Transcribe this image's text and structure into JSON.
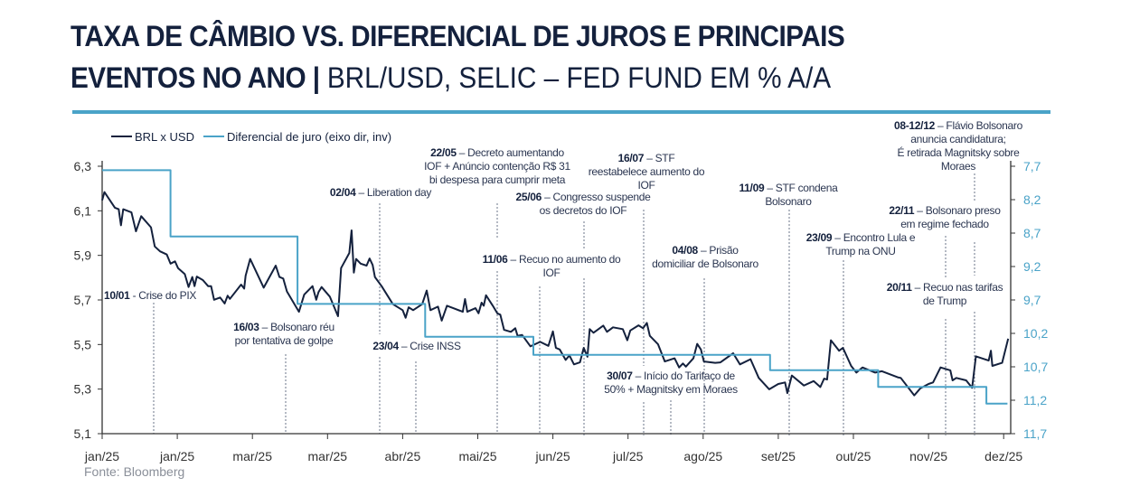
{
  "title": {
    "line1": "TAXA DE CÂMBIO VS. DIFERENCIAL DE JUROS E PRINCIPAIS",
    "line2_bold": "EVENTOS NO ANO |",
    "line2_regular": " BRL/USD, SELIC – FED FUND EM % A/A"
  },
  "source": "Fonte: Bloomberg",
  "colors": {
    "brl": "#14213d",
    "diff": "#4aa3c8",
    "axis": "#333333",
    "accent": "#4aa3c8"
  },
  "annotations": [
    {
      "date": "10/01",
      "lines": [
        " - Crise do PIX"
      ]
    },
    {
      "date": "16/03",
      "lines": [
        " – Bolsonaro réu",
        "por tentativa de golpe"
      ]
    },
    {
      "date": "02/04",
      "lines": [
        " – Liberation day"
      ]
    },
    {
      "date": "23/04",
      "lines": [
        " – Crise INSS"
      ]
    },
    {
      "date": "22/05",
      "lines": [
        " – Decreto aumentando",
        "IOF + Anúncio contenção R$ 31",
        "bi despesa para cumprir meta"
      ]
    },
    {
      "date": "25/06",
      "lines": [
        " – Congresso suspende",
        "os decretos do IOF"
      ]
    },
    {
      "date": "11/06",
      "lines": [
        " – Recuo no aumento do",
        "IOF"
      ]
    },
    {
      "date": "16/07",
      "lines": [
        " – STF",
        "reestabelece aumento do",
        "IOF"
      ]
    },
    {
      "date": "30/07",
      "lines": [
        " – Início do Tarifaço de",
        "50% + Magnitsky em Moraes"
      ]
    },
    {
      "date": "04/08",
      "lines": [
        " – Prisão",
        "domiciliar de Bolsonaro"
      ]
    },
    {
      "date": "11/09",
      "lines": [
        " – STF condena",
        "Bolsonaro"
      ]
    },
    {
      "date": "23/09",
      "lines": [
        " – Encontro Lula e",
        "Trump na ONU"
      ]
    },
    {
      "date": "22/11",
      "lines": [
        " – Bolsonaro preso",
        "em regime fechado"
      ]
    },
    {
      "date": "20/11",
      "lines": [
        " – Recuo nas tarifas",
        "de Trump"
      ]
    },
    {
      "date": "08-12/12",
      "lines": [
        " – Flávio Bolsonaro",
        "anuncia candidatura;",
        "É retirada Magnitsky sobre",
        "Moraes"
      ]
    }
  ],
  "chart_data": {
    "type": "line",
    "title": "TAXA DE CÂMBIO VS. DIFERENCIAL DE JUROS E PRINCIPAIS EVENTOS NO ANO | BRL/USD, SELIC – FED FUND EM % A/A",
    "x_unit": "months since start of January 2025",
    "x_ticks": [
      "jan/25",
      "jan/25",
      "mar/25",
      "mar/25",
      "abr/25",
      "mai/25",
      "jun/25",
      "jul/25",
      "ago/25",
      "set/25",
      "out/25",
      "nov/25",
      "dez/25"
    ],
    "y_left": {
      "ticks": [
        "6,3",
        "6,1",
        "5,9",
        "5,7",
        "5,5",
        "5,3",
        "5,1"
      ],
      "range": [
        5.1,
        6.3
      ]
    },
    "y_right": {
      "ticks": [
        "7,7",
        "8,2",
        "8,7",
        "9,2",
        "9,7",
        "10,2",
        "10,7",
        "11,2",
        "11,7"
      ],
      "range": [
        7.7,
        11.7
      ],
      "inverted": true
    },
    "legend": {
      "position": "top-left",
      "items": [
        "BRL x USD",
        "Diferencial de juro (eixo dir, inv)"
      ]
    },
    "series": [
      {
        "name": "BRL x USD",
        "axis": "left",
        "points": [
          [
            0,
            6.147
          ],
          [
            0.03,
            6.184
          ],
          [
            0.17,
            6.114
          ],
          [
            0.22,
            6.107
          ],
          [
            0.25,
            6.035
          ],
          [
            0.28,
            6.107
          ],
          [
            0.39,
            6.093
          ],
          [
            0.45,
            6.008
          ],
          [
            0.52,
            6.076
          ],
          [
            0.65,
            6.026
          ],
          [
            0.7,
            5.94
          ],
          [
            0.77,
            5.918
          ],
          [
            0.86,
            5.904
          ],
          [
            0.91,
            5.863
          ],
          [
            0.97,
            5.873
          ],
          [
            1.01,
            5.843
          ],
          [
            1.1,
            5.816
          ],
          [
            1.15,
            5.758
          ],
          [
            1.2,
            5.803
          ],
          [
            1.23,
            5.762
          ],
          [
            1.26,
            5.805
          ],
          [
            1.34,
            5.789
          ],
          [
            1.41,
            5.762
          ],
          [
            1.45,
            5.762
          ],
          [
            1.49,
            5.701
          ],
          [
            1.57,
            5.711
          ],
          [
            1.63,
            5.684
          ],
          [
            1.67,
            5.719
          ],
          [
            1.7,
            5.705
          ],
          [
            1.85,
            5.769
          ],
          [
            1.89,
            5.751
          ],
          [
            1.91,
            5.809
          ],
          [
            1.97,
            5.884
          ],
          [
            2.15,
            5.755
          ],
          [
            2.31,
            5.854
          ],
          [
            2.36,
            5.803
          ],
          [
            2.41,
            5.796
          ],
          [
            2.46,
            5.738
          ],
          [
            2.62,
            5.647
          ],
          [
            2.69,
            5.724
          ],
          [
            2.8,
            5.762
          ],
          [
            2.85,
            5.701
          ],
          [
            2.88,
            5.735
          ],
          [
            2.92,
            5.758
          ],
          [
            3.03,
            5.715
          ],
          [
            3.14,
            5.627
          ],
          [
            3.18,
            5.843
          ],
          [
            3.29,
            5.911
          ],
          [
            3.32,
            6.012
          ],
          [
            3.35,
            5.823
          ],
          [
            3.38,
            5.884
          ],
          [
            3.44,
            5.863
          ],
          [
            3.52,
            5.854
          ],
          [
            3.56,
            5.886
          ],
          [
            3.6,
            5.857
          ],
          [
            3.63,
            5.803
          ],
          [
            3.72,
            5.762
          ],
          [
            3.87,
            5.681
          ],
          [
            4.0,
            5.654
          ],
          [
            4.04,
            5.62
          ],
          [
            4.08,
            5.667
          ],
          [
            4.14,
            5.654
          ],
          [
            4.26,
            5.681
          ],
          [
            4.32,
            5.742
          ],
          [
            4.37,
            5.654
          ],
          [
            4.47,
            5.67
          ],
          [
            4.52,
            5.607
          ],
          [
            4.59,
            5.674
          ],
          [
            4.69,
            5.661
          ],
          [
            4.8,
            5.647
          ],
          [
            4.83,
            5.704
          ],
          [
            4.86,
            5.647
          ],
          [
            4.97,
            5.663
          ],
          [
            5.01,
            5.64
          ],
          [
            5.05,
            5.688
          ],
          [
            5.08,
            5.674
          ],
          [
            5.11,
            5.721
          ],
          [
            5.2,
            5.674
          ],
          [
            5.26,
            5.64
          ],
          [
            5.3,
            5.634
          ],
          [
            5.35,
            5.566
          ],
          [
            5.44,
            5.557
          ],
          [
            5.5,
            5.573
          ],
          [
            5.53,
            5.539
          ],
          [
            5.59,
            5.543
          ],
          [
            5.7,
            5.492
          ],
          [
            5.83,
            5.512
          ],
          [
            5.94,
            5.494
          ],
          [
            6.0,
            5.559
          ],
          [
            6.04,
            5.485
          ],
          [
            6.09,
            5.478
          ],
          [
            6.17,
            5.431
          ],
          [
            6.22,
            5.451
          ],
          [
            6.28,
            5.411
          ],
          [
            6.36,
            5.42
          ],
          [
            6.41,
            5.485
          ],
          [
            6.46,
            5.445
          ],
          [
            6.49,
            5.569
          ],
          [
            6.54,
            5.553
          ],
          [
            6.67,
            5.585
          ],
          [
            6.72,
            5.557
          ],
          [
            6.8,
            5.577
          ],
          [
            6.93,
            5.569
          ],
          [
            6.99,
            5.519
          ],
          [
            7.03,
            5.563
          ],
          [
            7.14,
            5.586
          ],
          [
            7.2,
            5.573
          ],
          [
            7.25,
            5.597
          ],
          [
            7.29,
            5.539
          ],
          [
            7.4,
            5.501
          ],
          [
            7.49,
            5.424
          ],
          [
            7.62,
            5.438
          ],
          [
            7.68,
            5.397
          ],
          [
            7.73,
            5.415
          ],
          [
            7.77,
            5.401
          ],
          [
            7.87,
            5.438
          ],
          [
            7.92,
            5.503
          ],
          [
            7.97,
            5.478
          ],
          [
            8.01,
            5.424
          ],
          [
            8.16,
            5.418
          ],
          [
            8.23,
            5.42
          ],
          [
            8.4,
            5.461
          ],
          [
            8.49,
            5.411
          ],
          [
            8.63,
            5.434
          ],
          [
            8.74,
            5.35
          ],
          [
            8.88,
            5.299
          ],
          [
            9.0,
            5.323
          ],
          [
            9.09,
            5.33
          ],
          [
            9.12,
            5.282
          ],
          [
            9.18,
            5.361
          ],
          [
            9.34,
            5.316
          ],
          [
            9.47,
            5.336
          ],
          [
            9.56,
            5.309
          ],
          [
            9.61,
            5.347
          ],
          [
            9.65,
            5.343
          ],
          [
            9.7,
            5.519
          ],
          [
            9.81,
            5.472
          ],
          [
            9.86,
            5.485
          ],
          [
            9.97,
            5.404
          ],
          [
            10.04,
            5.374
          ],
          [
            10.12,
            5.397
          ],
          [
            10.29,
            5.374
          ],
          [
            10.38,
            5.38
          ],
          [
            10.59,
            5.353
          ],
          [
            10.63,
            5.35
          ],
          [
            10.81,
            5.272
          ],
          [
            10.89,
            5.303
          ],
          [
            11.0,
            5.323
          ],
          [
            11.06,
            5.33
          ],
          [
            11.16,
            5.397
          ],
          [
            11.29,
            5.384
          ],
          [
            11.32,
            5.339
          ],
          [
            11.37,
            5.35
          ],
          [
            11.5,
            5.339
          ],
          [
            11.58,
            5.306
          ],
          [
            11.63,
            5.447
          ],
          [
            11.8,
            5.428
          ],
          [
            11.83,
            5.472
          ],
          [
            11.85,
            5.404
          ],
          [
            11.98,
            5.418
          ],
          [
            12.06,
            5.526
          ]
        ]
      },
      {
        "name": "Diferencial de juro (eixo dir, inv)",
        "axis": "right",
        "step": true,
        "points": [
          [
            0,
            7.76
          ],
          [
            0.91,
            7.76
          ],
          [
            0.91,
            8.75
          ],
          [
            2.6,
            8.75
          ],
          [
            2.6,
            9.76
          ],
          [
            4.3,
            9.76
          ],
          [
            4.3,
            10.25
          ],
          [
            5.74,
            10.25
          ],
          [
            5.74,
            10.52
          ],
          [
            8.89,
            10.52
          ],
          [
            8.89,
            10.75
          ],
          [
            10.33,
            10.75
          ],
          [
            10.33,
            11.0
          ],
          [
            11.77,
            11.0
          ],
          [
            11.77,
            11.25
          ],
          [
            12.05,
            11.25
          ]
        ]
      }
    ]
  }
}
